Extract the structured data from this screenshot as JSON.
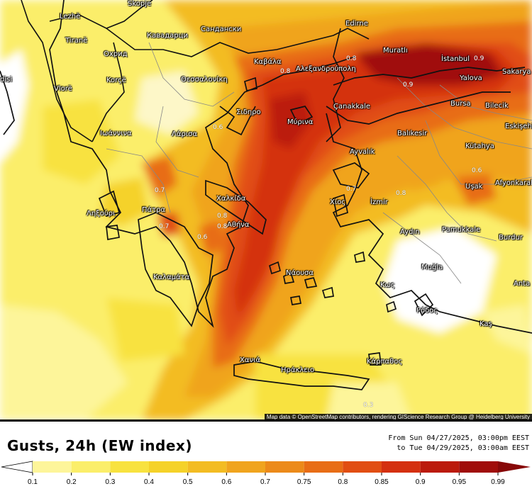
{
  "title": "Gusts, 24h (EW index)",
  "period": {
    "from": "From Sun 04/27/2025, 03:00pm EEST",
    "to": "to Tue 04/29/2025, 03:00am EEST"
  },
  "attribution": "Map data © OpenStreetMap contributors, rendering GIScience Research Group @ Heidelberg University",
  "legend": {
    "ticks": [
      "0.1",
      "0.2",
      "0.3",
      "0.4",
      "0.5",
      "0.6",
      "0.7",
      "0.75",
      "0.8",
      "0.85",
      "0.9",
      "0.95",
      "0.99"
    ],
    "colors": [
      "#fdf59a",
      "#fbee6a",
      "#f8e23f",
      "#f5d229",
      "#f3bc23",
      "#f0a41e",
      "#ec8a1a",
      "#e86d16",
      "#e14e13",
      "#d4300f",
      "#bb1a0c",
      "#a00d0a",
      "#870808"
    ]
  },
  "map": {
    "cities": [
      {
        "name": "Skopje"
      },
      {
        "name": "Lezhë"
      },
      {
        "name": "Tiranë"
      },
      {
        "name": "Кавадарци"
      },
      {
        "name": "Сандански"
      },
      {
        "name": "Охрид"
      },
      {
        "name": "Korçë"
      },
      {
        "name": "Vlorë"
      },
      {
        "name": "disi"
      },
      {
        "name": "Θεσσαλονίκη"
      },
      {
        "name": "Καβάλα"
      },
      {
        "name": "Αλεξανδρούπολη"
      },
      {
        "name": "Edirne"
      },
      {
        "name": "Muratlı"
      },
      {
        "name": "İstanbul"
      },
      {
        "name": "Yalova"
      },
      {
        "name": "Sakarya"
      },
      {
        "name": "Bursa"
      },
      {
        "name": "Bilecik"
      },
      {
        "name": "Eskişehir"
      },
      {
        "name": "Çanakkale"
      },
      {
        "name": "Μύρινα"
      },
      {
        "name": "Balıkesir"
      },
      {
        "name": "Ayvalık"
      },
      {
        "name": "Kütahya"
      },
      {
        "name": "Λάρισα"
      },
      {
        "name": "Ιωάννινα"
      },
      {
        "name": "Σιδηρο"
      },
      {
        "name": "Χαλκίδα"
      },
      {
        "name": "Αθήνα"
      },
      {
        "name": "Πάτρα"
      },
      {
        "name": "Ληξούρι"
      },
      {
        "name": "Χίος"
      },
      {
        "name": "İzmir"
      },
      {
        "name": "Uşak"
      },
      {
        "name": "Afyonkarahisar"
      },
      {
        "name": "Aydın"
      },
      {
        "name": "Pamukkale"
      },
      {
        "name": "Burdur"
      },
      {
        "name": "Νάουσα"
      },
      {
        "name": "Muğla"
      },
      {
        "name": "Κως"
      },
      {
        "name": "Ρόδος"
      },
      {
        "name": "Kaş"
      },
      {
        "name": "Anta"
      },
      {
        "name": "Καλαμάτα"
      },
      {
        "name": "Χανιά"
      },
      {
        "name": "Ηράκλειο"
      },
      {
        "name": "Κάρπαθος"
      }
    ],
    "contour_labels": [
      "0.8",
      "0.9",
      "0.6",
      "0.7",
      "0.8",
      "0.8",
      "0.6",
      "0.9",
      "0.6",
      "0.7",
      "0.8",
      "0.7",
      "0.8",
      "0.3"
    ]
  }
}
